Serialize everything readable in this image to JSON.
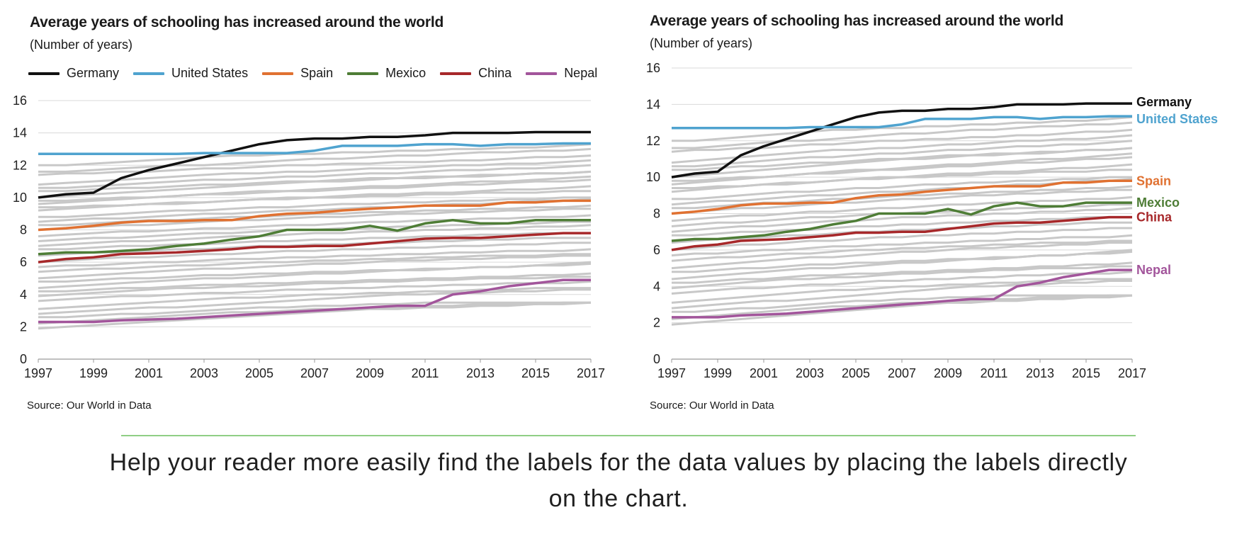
{
  "colors": {
    "background_line": "#c8c8c8",
    "grid": "#d9d9d9",
    "axis": "#9a9a9a",
    "Germany": "#111111",
    "United States": "#4fa3cf",
    "Spain": "#e07131",
    "Mexico": "#4e7d36",
    "China": "#a7282a",
    "Nepal": "#a2559b"
  },
  "charts": {
    "left": {
      "title": "Average years of schooling has increased around the world",
      "subtitle": "(Number of years)",
      "source": "Source: Our World in Data",
      "legend": [
        "Germany",
        "United States",
        "Spain",
        "Mexico",
        "China",
        "Nepal"
      ]
    },
    "right": {
      "title": "Average years of schooling has increased around the world",
      "subtitle": "(Number of years)",
      "source": "Source: Our World in Data",
      "direct_labels": [
        "Germany",
        "United States",
        "Spain",
        "Mexico",
        "China",
        "Nepal"
      ]
    }
  },
  "caption": "Help your reader more easily find the labels for the data values by placing the labels directly on the chart.",
  "chart_data": {
    "type": "line",
    "title": "Average years of schooling has increased around the world",
    "ylabel": "(Number of years)",
    "xlabel": "",
    "ylim": [
      0,
      16
    ],
    "yticks": [
      0,
      2,
      4,
      6,
      8,
      10,
      12,
      14,
      16
    ],
    "xticks": [
      1997,
      1999,
      2001,
      2003,
      2005,
      2007,
      2009,
      2011,
      2013,
      2015,
      2017
    ],
    "x": [
      1997,
      1998,
      1999,
      2000,
      2001,
      2002,
      2003,
      2004,
      2005,
      2006,
      2007,
      2008,
      2009,
      2010,
      2011,
      2012,
      2013,
      2014,
      2015,
      2016,
      2017
    ],
    "series": [
      {
        "name": "Germany",
        "values": [
          10.0,
          10.2,
          10.3,
          11.2,
          11.7,
          12.1,
          12.5,
          12.9,
          13.3,
          13.55,
          13.65,
          13.65,
          13.75,
          13.75,
          13.85,
          14.0,
          14.0,
          14.0,
          14.05,
          14.05,
          14.05
        ]
      },
      {
        "name": "United States",
        "values": [
          12.7,
          12.7,
          12.7,
          12.7,
          12.7,
          12.7,
          12.75,
          12.75,
          12.75,
          12.75,
          12.9,
          13.2,
          13.2,
          13.2,
          13.3,
          13.3,
          13.2,
          13.3,
          13.3,
          13.35,
          13.35
        ]
      },
      {
        "name": "Spain",
        "values": [
          8.0,
          8.1,
          8.25,
          8.45,
          8.55,
          8.55,
          8.6,
          8.6,
          8.85,
          9.0,
          9.05,
          9.2,
          9.3,
          9.4,
          9.5,
          9.5,
          9.5,
          9.7,
          9.7,
          9.8,
          9.8
        ]
      },
      {
        "name": "Mexico",
        "values": [
          6.5,
          6.6,
          6.6,
          6.7,
          6.8,
          7.0,
          7.15,
          7.4,
          7.6,
          8.0,
          8.0,
          8.0,
          8.25,
          7.95,
          8.4,
          8.6,
          8.4,
          8.4,
          8.6,
          8.6,
          8.6
        ]
      },
      {
        "name": "China",
        "values": [
          6.0,
          6.2,
          6.3,
          6.5,
          6.55,
          6.6,
          6.7,
          6.8,
          6.95,
          6.95,
          7.0,
          7.0,
          7.15,
          7.3,
          7.45,
          7.5,
          7.5,
          7.6,
          7.7,
          7.8,
          7.8
        ]
      },
      {
        "name": "Nepal",
        "values": [
          2.3,
          2.3,
          2.3,
          2.4,
          2.45,
          2.5,
          2.6,
          2.7,
          2.8,
          2.9,
          3.0,
          3.1,
          3.2,
          3.3,
          3.3,
          4.0,
          4.2,
          4.5,
          4.7,
          4.9,
          4.9
        ]
      }
    ],
    "background_series": [
      [
        12.0,
        12.0,
        12.1,
        12.2,
        12.3,
        12.4,
        12.5,
        12.6,
        12.6,
        12.7,
        12.7,
        12.8,
        12.8,
        12.9,
        12.9,
        13.0,
        13.0,
        13.1,
        13.1,
        13.2,
        13.3
      ],
      [
        11.6,
        11.6,
        11.7,
        11.8,
        11.9,
        12.0,
        12.0,
        12.1,
        12.2,
        12.3,
        12.4,
        12.4,
        12.5,
        12.6,
        12.6,
        12.7,
        12.8,
        12.8,
        12.9,
        12.9,
        13.0
      ],
      [
        11.4,
        11.5,
        11.5,
        11.6,
        11.6,
        11.7,
        11.8,
        11.8,
        11.9,
        12.0,
        12.0,
        12.1,
        12.1,
        12.2,
        12.2,
        12.3,
        12.3,
        12.4,
        12.5,
        12.5,
        12.6
      ],
      [
        10.8,
        10.9,
        11.0,
        11.1,
        11.2,
        11.3,
        11.4,
        11.5,
        11.5,
        11.6,
        11.6,
        11.7,
        11.8,
        11.8,
        11.9,
        12.0,
        12.0,
        12.1,
        12.1,
        12.2,
        12.3
      ],
      [
        10.6,
        10.6,
        10.7,
        10.8,
        10.9,
        11.0,
        11.1,
        11.1,
        11.2,
        11.3,
        11.3,
        11.4,
        11.5,
        11.5,
        11.6,
        11.7,
        11.7,
        11.8,
        11.8,
        11.9,
        12.0
      ],
      [
        10.4,
        10.4,
        10.5,
        10.6,
        10.6,
        10.7,
        10.8,
        10.8,
        10.9,
        11.0,
        11.0,
        11.1,
        11.2,
        11.2,
        11.3,
        11.3,
        11.4,
        11.4,
        11.5,
        11.5,
        11.6
      ],
      [
        10.0,
        10.1,
        10.2,
        10.3,
        10.4,
        10.5,
        10.6,
        10.7,
        10.8,
        10.9,
        11.0,
        11.0,
        11.1,
        11.2,
        11.2,
        11.3,
        11.3,
        11.4,
        11.5,
        11.5,
        11.6
      ],
      [
        9.8,
        9.8,
        9.9,
        10.0,
        10.0,
        10.1,
        10.2,
        10.2,
        10.3,
        10.4,
        10.4,
        10.5,
        10.6,
        10.6,
        10.7,
        10.8,
        10.8,
        10.9,
        11.0,
        11.0,
        11.1
      ],
      [
        9.6,
        9.7,
        9.8,
        9.9,
        10.0,
        10.1,
        10.2,
        10.3,
        10.4,
        10.4,
        10.5,
        10.6,
        10.7,
        10.7,
        10.8,
        10.9,
        11.0,
        11.0,
        11.1,
        11.2,
        11.3
      ],
      [
        9.4,
        9.4,
        9.5,
        9.5,
        9.6,
        9.7,
        9.7,
        9.8,
        9.9,
        9.9,
        10.0,
        10.0,
        10.1,
        10.1,
        10.2,
        10.2,
        10.3,
        10.3,
        10.3,
        10.4,
        10.4
      ],
      [
        9.2,
        9.3,
        9.4,
        9.5,
        9.6,
        9.6,
        9.7,
        9.8,
        9.9,
        10.0,
        10.0,
        10.1,
        10.2,
        10.2,
        10.3,
        10.3,
        10.4,
        10.5,
        10.5,
        10.6,
        10.7
      ],
      [
        8.8,
        8.8,
        8.9,
        9.0,
        9.1,
        9.2,
        9.2,
        9.3,
        9.4,
        9.4,
        9.5,
        9.6,
        9.6,
        9.7,
        9.7,
        9.8,
        9.8,
        9.9,
        9.9,
        10.0,
        10.0
      ],
      [
        8.5,
        8.6,
        8.7,
        8.7,
        8.8,
        8.9,
        9.0,
        9.0,
        9.1,
        9.2,
        9.2,
        9.3,
        9.4,
        9.4,
        9.5,
        9.6,
        9.6,
        9.7,
        9.8,
        9.8,
        9.9
      ],
      [
        8.3,
        8.3,
        8.4,
        8.5,
        8.6,
        8.6,
        8.7,
        8.8,
        8.8,
        8.9,
        9.0,
        9.0,
        9.1,
        9.1,
        9.2,
        9.2,
        9.3,
        9.3,
        9.4,
        9.4,
        9.5
      ],
      [
        8.0,
        8.1,
        8.2,
        8.3,
        8.3,
        8.4,
        8.5,
        8.6,
        8.6,
        8.7,
        8.8,
        8.8,
        8.9,
        9.0,
        9.0,
        9.1,
        9.1,
        9.2,
        9.2,
        9.3,
        9.3
      ],
      [
        7.6,
        7.7,
        7.8,
        7.9,
        7.9,
        8.0,
        8.1,
        8.1,
        8.2,
        8.3,
        8.3,
        8.4,
        8.5,
        8.5,
        8.6,
        8.6,
        8.7,
        8.7,
        8.8,
        8.8,
        8.9
      ],
      [
        7.3,
        7.4,
        7.5,
        7.5,
        7.6,
        7.7,
        7.8,
        7.8,
        7.9,
        8.0,
        8.0,
        8.1,
        8.1,
        8.2,
        8.2,
        8.3,
        8.3,
        8.4,
        8.4,
        8.5,
        8.5
      ],
      [
        7.0,
        7.1,
        7.2,
        7.3,
        7.3,
        7.4,
        7.5,
        7.6,
        7.6,
        7.7,
        7.8,
        7.8,
        7.9,
        7.9,
        8.0,
        8.0,
        8.1,
        8.1,
        8.2,
        8.2,
        8.3
      ],
      [
        6.8,
        6.8,
        6.9,
        7.0,
        7.0,
        7.1,
        7.1,
        7.2,
        7.3,
        7.3,
        7.4,
        7.4,
        7.5,
        7.5,
        7.6,
        7.6,
        7.7,
        7.7,
        7.8,
        7.8,
        7.8
      ],
      [
        6.4,
        6.5,
        6.6,
        6.6,
        6.7,
        6.8,
        6.8,
        6.9,
        7.0,
        7.0,
        7.1,
        7.1,
        7.2,
        7.2,
        7.3,
        7.3,
        7.4,
        7.4,
        7.5,
        7.5,
        7.5
      ],
      [
        6.0,
        6.1,
        6.2,
        6.3,
        6.3,
        6.4,
        6.5,
        6.5,
        6.6,
        6.7,
        6.7,
        6.8,
        6.8,
        6.9,
        6.9,
        7.0,
        7.0,
        7.1,
        7.1,
        7.2,
        7.2
      ],
      [
        5.7,
        5.8,
        5.8,
        5.9,
        6.0,
        6.0,
        6.1,
        6.2,
        6.2,
        6.3,
        6.3,
        6.4,
        6.4,
        6.5,
        6.5,
        6.6,
        6.6,
        6.7,
        6.7,
        6.7,
        6.8
      ],
      [
        5.4,
        5.5,
        5.6,
        5.6,
        5.7,
        5.8,
        5.8,
        5.9,
        6.0,
        6.0,
        6.1,
        6.1,
        6.2,
        6.2,
        6.3,
        6.3,
        6.4,
        6.4,
        6.4,
        6.5,
        6.5
      ],
      [
        5.0,
        5.1,
        5.2,
        5.3,
        5.4,
        5.5,
        5.6,
        5.6,
        5.7,
        5.8,
        5.9,
        5.9,
        6.0,
        6.1,
        6.1,
        6.2,
        6.2,
        6.3,
        6.3,
        6.4,
        6.4
      ],
      [
        4.8,
        4.8,
        4.9,
        5.0,
        5.0,
        5.1,
        5.2,
        5.2,
        5.3,
        5.3,
        5.4,
        5.4,
        5.5,
        5.5,
        5.6,
        5.6,
        5.7,
        5.7,
        5.8,
        5.8,
        5.9
      ],
      [
        4.4,
        4.5,
        4.6,
        4.7,
        4.8,
        4.9,
        5.0,
        5.0,
        5.1,
        5.2,
        5.3,
        5.3,
        5.4,
        5.5,
        5.5,
        5.6,
        5.7,
        5.7,
        5.8,
        5.9,
        6.0
      ],
      [
        4.2,
        4.2,
        4.3,
        4.4,
        4.4,
        4.5,
        4.6,
        4.6,
        4.7,
        4.7,
        4.8,
        4.8,
        4.9,
        4.9,
        5.0,
        5.0,
        5.1,
        5.1,
        5.2,
        5.2,
        5.3
      ],
      [
        3.9,
        4.0,
        4.1,
        4.2,
        4.3,
        4.4,
        4.4,
        4.5,
        4.5,
        4.6,
        4.7,
        4.7,
        4.8,
        4.8,
        4.9,
        4.9,
        5.0,
        5.0,
        5.0,
        5.1,
        5.1
      ],
      [
        3.6,
        3.7,
        3.8,
        3.9,
        3.9,
        4.0,
        4.1,
        4.1,
        4.2,
        4.3,
        4.3,
        4.4,
        4.4,
        4.5,
        4.5,
        4.6,
        4.6,
        4.7,
        4.7,
        4.7,
        4.8
      ],
      [
        3.1,
        3.2,
        3.3,
        3.4,
        3.5,
        3.6,
        3.7,
        3.8,
        3.8,
        3.9,
        4.0,
        4.0,
        4.1,
        4.1,
        4.2,
        4.2,
        4.3,
        4.3,
        4.4,
        4.4,
        4.4
      ],
      [
        2.8,
        2.9,
        3.0,
        3.1,
        3.2,
        3.2,
        3.3,
        3.4,
        3.5,
        3.6,
        3.7,
        3.8,
        3.9,
        4.0,
        4.0,
        4.1,
        4.1,
        4.2,
        4.2,
        4.3,
        4.3
      ],
      [
        2.6,
        2.6,
        2.7,
        2.8,
        2.8,
        2.9,
        3.0,
        3.1,
        3.2,
        3.2,
        3.3,
        3.3,
        3.4,
        3.4,
        3.5,
        3.5,
        3.5,
        3.5,
        3.5,
        3.5,
        3.5
      ],
      [
        2.2,
        2.3,
        2.4,
        2.5,
        2.6,
        2.7,
        2.8,
        2.9,
        2.9,
        3.0,
        3.1,
        3.1,
        3.2,
        3.2,
        3.3,
        3.3,
        3.4,
        3.4,
        3.4,
        3.5,
        3.5
      ],
      [
        1.9,
        2.0,
        2.1,
        2.2,
        2.3,
        2.4,
        2.5,
        2.6,
        2.7,
        2.8,
        2.9,
        3.0,
        3.1,
        3.1,
        3.2,
        3.2,
        3.3,
        3.3,
        3.4,
        3.4,
        3.5
      ]
    ]
  }
}
